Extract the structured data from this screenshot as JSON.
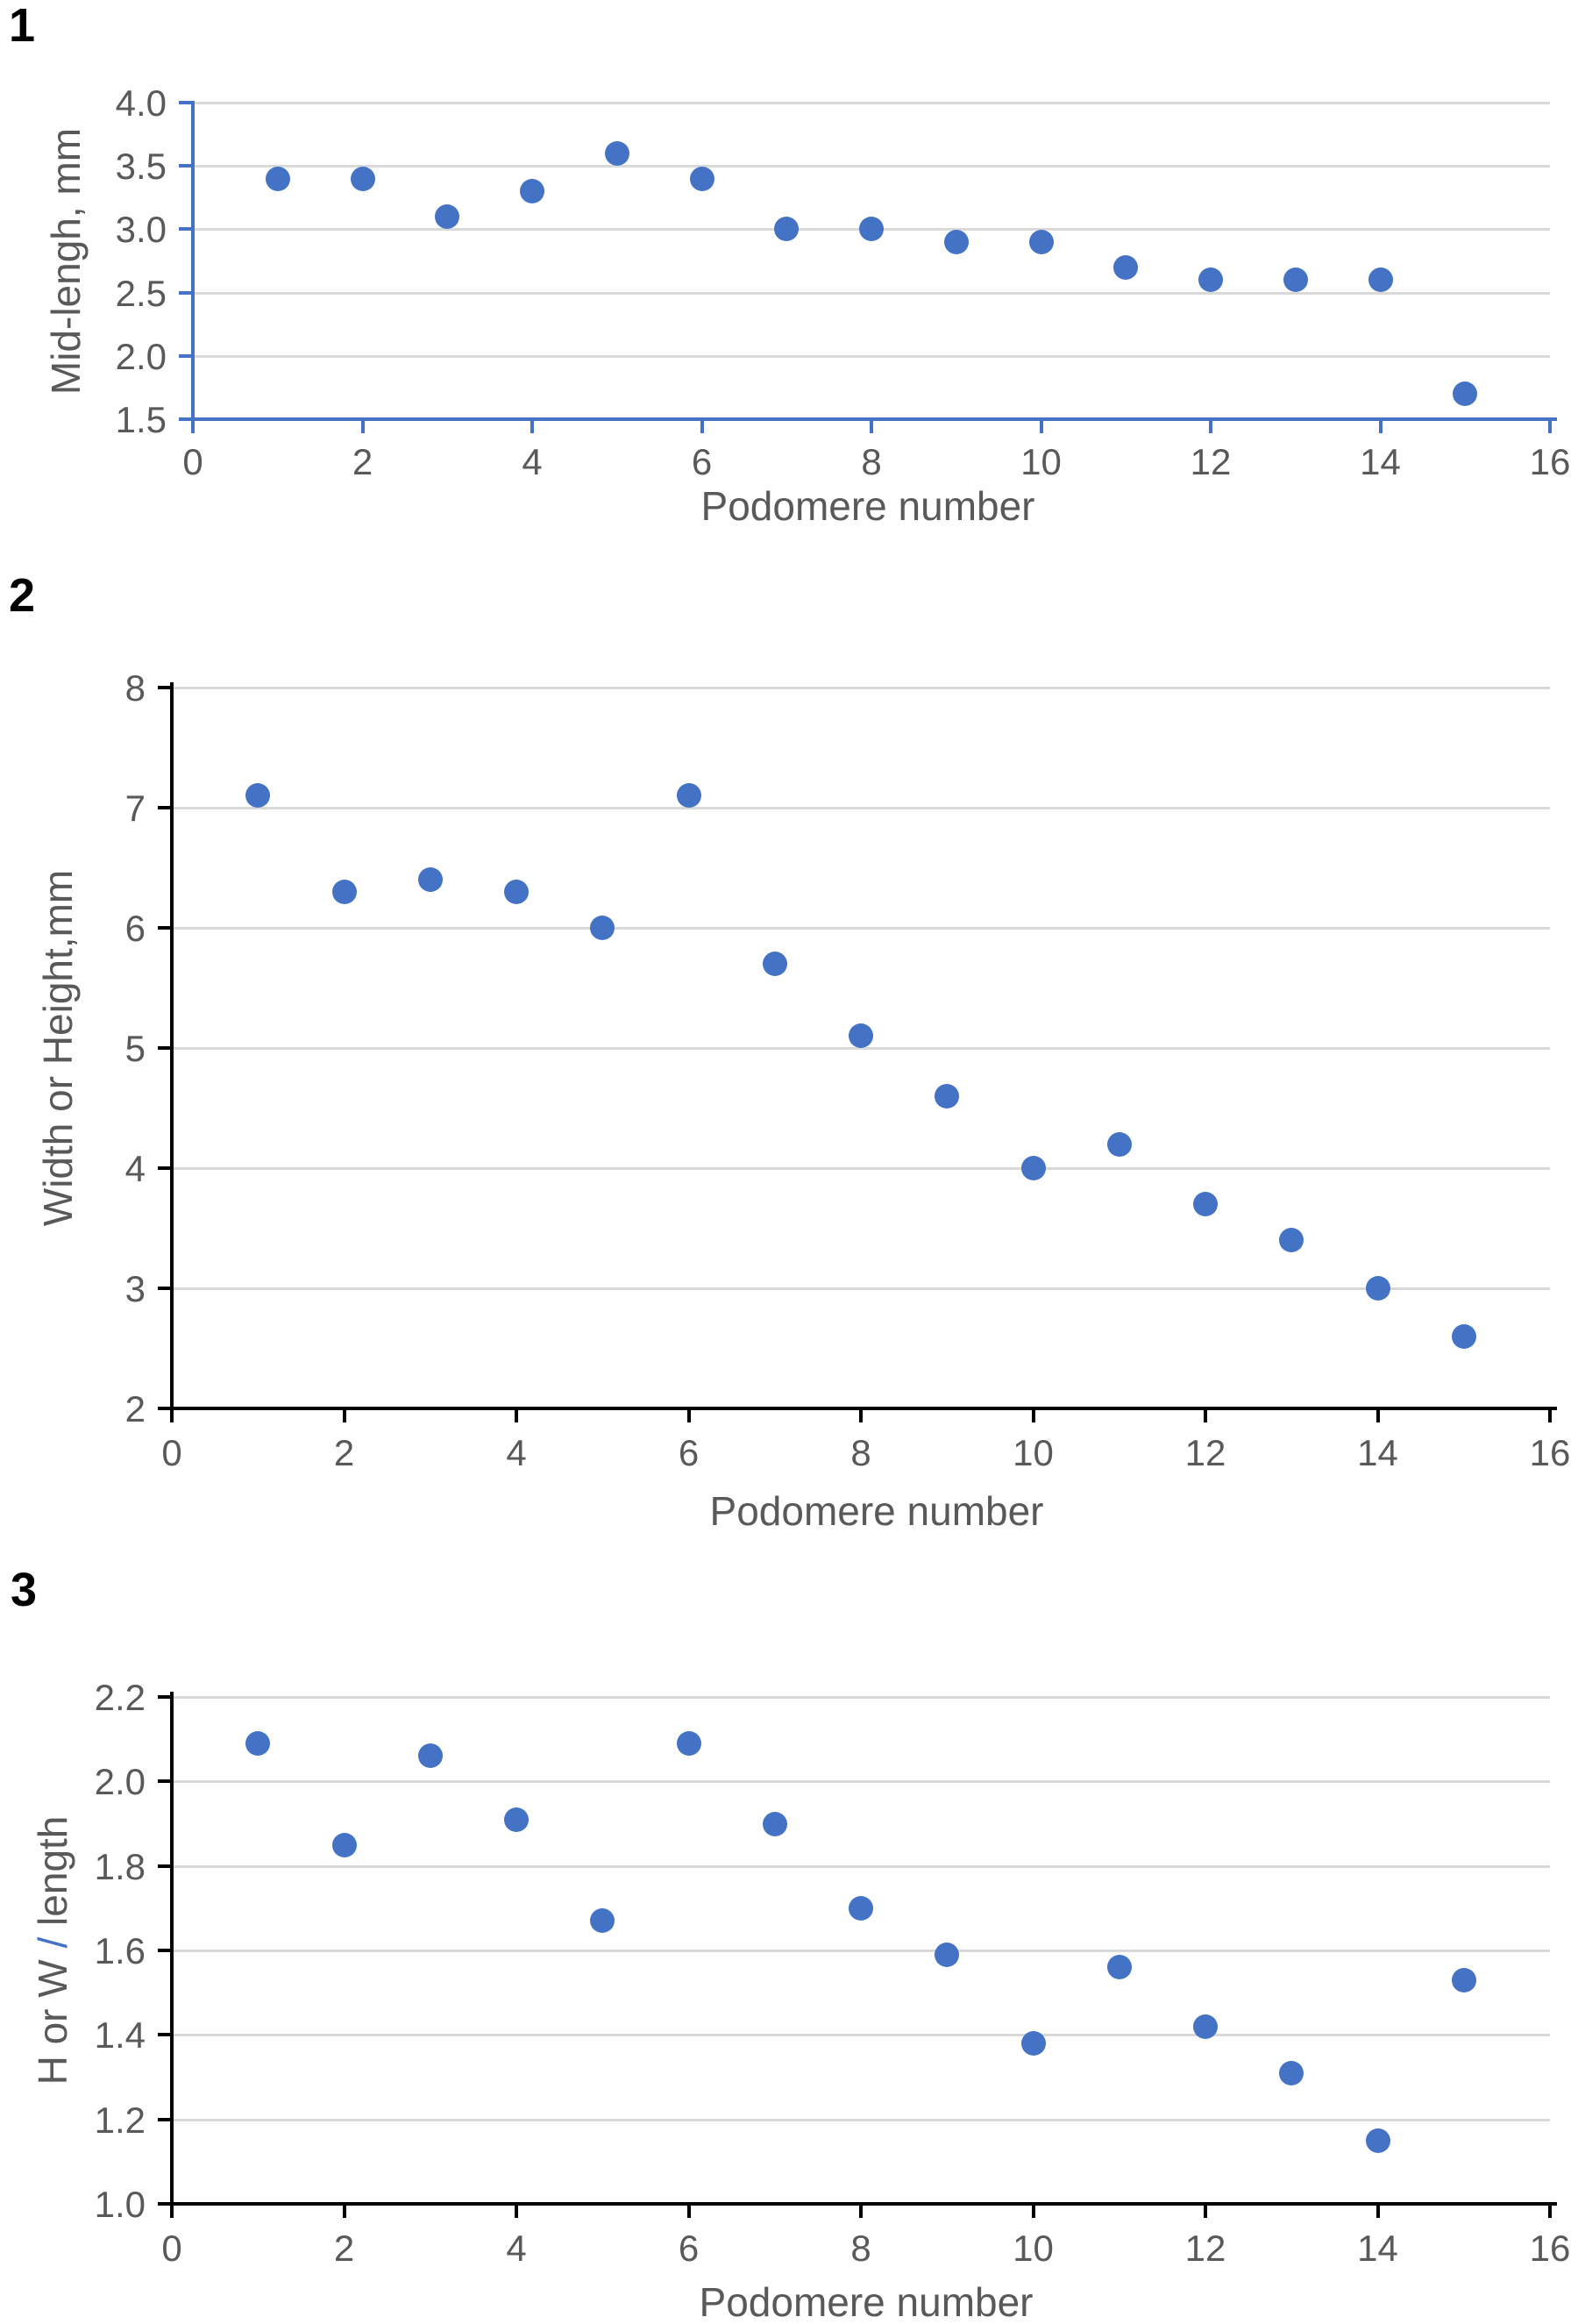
{
  "figure": {
    "background": "#ffffff",
    "description": "Three stacked scatter plots of trilobite podomere measurements"
  },
  "colors": {
    "marker": "#4472C4",
    "axis_blue": "#4472C4",
    "axis_black": "#000000",
    "gridline": "#D9D9D9",
    "tick_label": "#595959",
    "panel_label": "#000000"
  },
  "chart_data": [
    {
      "type": "scatter",
      "panel_label": "1",
      "title": "",
      "xlabel": "Podomere number",
      "ylabel": "Mid-lengh, mm",
      "ylabel_parts": [
        {
          "text": "Mid-lengh, mm",
          "color": "#595959"
        }
      ],
      "x": [
        1,
        2,
        3,
        4,
        5,
        6,
        7,
        8,
        9,
        10,
        11,
        12,
        13,
        14,
        15
      ],
      "y": [
        3.4,
        3.4,
        3.1,
        3.3,
        3.6,
        3.4,
        3.0,
        3.0,
        2.9,
        2.9,
        2.7,
        2.6,
        2.6,
        2.6,
        1.7
      ],
      "xlim": [
        0,
        16
      ],
      "ylim": [
        1.5,
        4.0
      ],
      "yticks": [
        "4.0",
        "3.5",
        "3.0",
        "2.5",
        "2.0",
        "1.5"
      ],
      "xticks": [
        "0",
        "2",
        "4",
        "6",
        "8",
        "10",
        "12",
        "14",
        "16"
      ],
      "axis_color": "#4472C4",
      "marker_color": "#4472C4",
      "grid": "horizontal gridlines only",
      "legend": "none"
    },
    {
      "type": "scatter",
      "panel_label": "2",
      "title": "",
      "xlabel": "Podomere number",
      "ylabel": "Width or Height,mm",
      "ylabel_parts": [
        {
          "text": "Width or Height,mm",
          "color": "#595959"
        }
      ],
      "x": [
        1,
        2,
        3,
        4,
        5,
        6,
        7,
        8,
        9,
        10,
        11,
        12,
        13,
        14,
        15
      ],
      "y": [
        7.1,
        6.3,
        6.4,
        6.3,
        6.0,
        7.1,
        5.7,
        5.1,
        4.6,
        4.0,
        4.2,
        3.7,
        3.4,
        3.0,
        2.6
      ],
      "xlim": [
        0,
        16
      ],
      "ylim": [
        2,
        8
      ],
      "yticks": [
        "8",
        "7",
        "6",
        "5",
        "4",
        "3",
        "2"
      ],
      "xticks": [
        "0",
        "2",
        "4",
        "6",
        "8",
        "10",
        "12",
        "14",
        "16"
      ],
      "axis_color": "#000000",
      "marker_color": "#4472C4",
      "grid": "horizontal gridlines only",
      "legend": "none"
    },
    {
      "type": "scatter",
      "panel_label": "3",
      "title": "",
      "xlabel": "Podomere number",
      "ylabel": "H or W / length",
      "ylabel_parts": [
        {
          "text": "H or W ",
          "color": "#595959"
        },
        {
          "text": "/",
          "color": "#4472C4"
        },
        {
          "text": " length",
          "color": "#595959"
        }
      ],
      "x": [
        1,
        2,
        3,
        4,
        5,
        6,
        7,
        8,
        9,
        10,
        11,
        12,
        13,
        14,
        15
      ],
      "y": [
        2.09,
        1.85,
        2.06,
        1.91,
        1.67,
        2.09,
        1.9,
        1.7,
        1.59,
        1.38,
        1.56,
        1.42,
        1.31,
        1.15,
        1.53
      ],
      "xlim": [
        0,
        16
      ],
      "ylim": [
        1.0,
        2.2
      ],
      "yticks": [
        "2.2",
        "2.0",
        "1.8",
        "1.6",
        "1.4",
        "1.2",
        "1.0"
      ],
      "xticks": [
        "0",
        "2",
        "4",
        "6",
        "8",
        "10",
        "12",
        "14",
        "16"
      ],
      "axis_color": "#000000",
      "marker_color": "#4472C4",
      "grid": "horizontal gridlines only",
      "legend": "none"
    }
  ]
}
